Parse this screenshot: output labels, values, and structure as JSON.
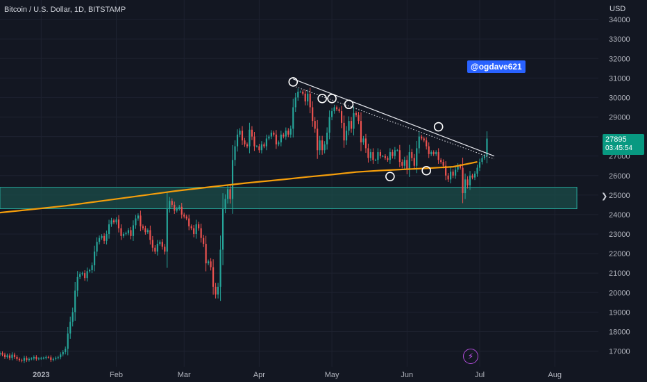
{
  "header": {
    "title": "Bitcoin / U.S. Dollar, 1D, BITSTAMP",
    "currency": "USD",
    "watermark": "@ogdave621"
  },
  "last_price": {
    "price": "27895",
    "countdown": "03:45:54"
  },
  "colors": {
    "up": "#26a69a",
    "down": "#ef5350",
    "ma": "#f59e0b",
    "zone_fill": "#1b4d4a",
    "zone_border": "#26a69a",
    "badge": "#089981"
  },
  "icons": {
    "bolt": "lightning-bolt-icon",
    "collapse": "chevron-icon"
  },
  "chart_data": {
    "type": "candlestick",
    "y_ticks": [
      17000,
      18000,
      19000,
      20000,
      21000,
      22000,
      23000,
      24000,
      25000,
      26000,
      27000,
      28000,
      29000,
      30000,
      31000,
      32000,
      33000,
      34000
    ],
    "x_ticks": [
      "2023",
      "Feb",
      "Mar",
      "Apr",
      "May",
      "Jun",
      "Jul",
      "Aug"
    ],
    "x_tick_days": [
      0,
      31,
      59,
      90,
      120,
      151,
      181,
      212
    ],
    "ylim": [
      16200,
      35000
    ],
    "xlim_days": [
      -17,
      230
    ],
    "closes": [
      16900,
      16820,
      16700,
      16780,
      16650,
      16820,
      16700,
      16600,
      16540,
      16500,
      16650,
      16540,
      16600,
      16620,
      16700,
      16600,
      16620,
      16640,
      16650,
      16700,
      16680,
      16550,
      16600,
      16650,
      16690,
      16830,
      16950,
      17120,
      17900,
      18500,
      19000,
      20100,
      20800,
      20950,
      21000,
      20750,
      21100,
      21150,
      21400,
      22100,
      22600,
      22800,
      22900,
      22650,
      23000,
      23500,
      23700,
      23600,
      23750,
      23300,
      22900,
      23000,
      23050,
      23200,
      22900,
      23450,
      23800,
      23950,
      23400,
      23300,
      23100,
      23200,
      22700,
      22300,
      22100,
      22500,
      22600,
      22350,
      22100,
      24300,
      24700,
      24500,
      24200,
      24300,
      24400,
      24000,
      23900,
      23800,
      23400,
      23300,
      23000,
      23500,
      23300,
      22800,
      22500,
      21500,
      21600,
      21300,
      20300,
      19900,
      20300,
      22200,
      24300,
      24800,
      25300,
      24800,
      26800,
      27500,
      28100,
      28300,
      27800,
      27600,
      27500,
      28350,
      28000,
      27500,
      27500,
      27300,
      27600,
      27500,
      27900,
      28000,
      28200,
      28100,
      27600,
      27700,
      28100,
      28000,
      28300,
      28100,
      28400,
      29500,
      30000,
      30300,
      30300,
      30200,
      29800,
      30200,
      29500,
      28800,
      28400,
      27300,
      27800,
      27300,
      27600,
      28200,
      29000,
      29300,
      29500,
      29400,
      29300,
      28700,
      27800,
      28300,
      28800,
      28400,
      29200,
      29100,
      28800,
      27700,
      27900,
      27400,
      26900,
      27200,
      26800,
      26800,
      27200,
      27000,
      27000,
      26900,
      26800,
      27200,
      27000,
      27300,
      27300,
      26700,
      26500,
      26800,
      26300,
      27200,
      26900,
      26500,
      27400,
      28000,
      27900,
      27800,
      27500,
      27100,
      27200,
      27100,
      27200,
      26800,
      26700,
      26500,
      26000,
      25800,
      26200,
      26000,
      26300,
      26500,
      26400,
      25100,
      25800,
      25500,
      26000,
      25900,
      26100,
      26400,
      26700,
      26900,
      27000,
      27895
    ],
    "ma": [
      [
        -17,
        24100
      ],
      [
        -5,
        24250
      ],
      [
        10,
        24450
      ],
      [
        25,
        24700
      ],
      [
        40,
        24950
      ],
      [
        55,
        25200
      ],
      [
        70,
        25420
      ],
      [
        85,
        25620
      ],
      [
        100,
        25800
      ],
      [
        110,
        25930
      ],
      [
        120,
        26050
      ],
      [
        130,
        26180
      ],
      [
        140,
        26260
      ],
      [
        150,
        26320
      ],
      [
        160,
        26380
      ],
      [
        170,
        26450
      ],
      [
        176,
        26600
      ],
      [
        180,
        26700
      ]
    ],
    "support_zone": [
      24300,
      25400
    ],
    "trendlines": [
      {
        "style": "solid",
        "from": [
          104,
          30950
        ],
        "to": [
          187,
          27000
        ]
      },
      {
        "style": "dotted",
        "from": [
          104,
          30600
        ],
        "to": [
          187,
          26850
        ]
      }
    ],
    "markers": [
      [
        104,
        30800
      ],
      [
        116,
        29950
      ],
      [
        120,
        29950
      ],
      [
        127,
        29650
      ],
      [
        144,
        25950
      ],
      [
        159,
        26250
      ],
      [
        164,
        28500
      ]
    ]
  }
}
